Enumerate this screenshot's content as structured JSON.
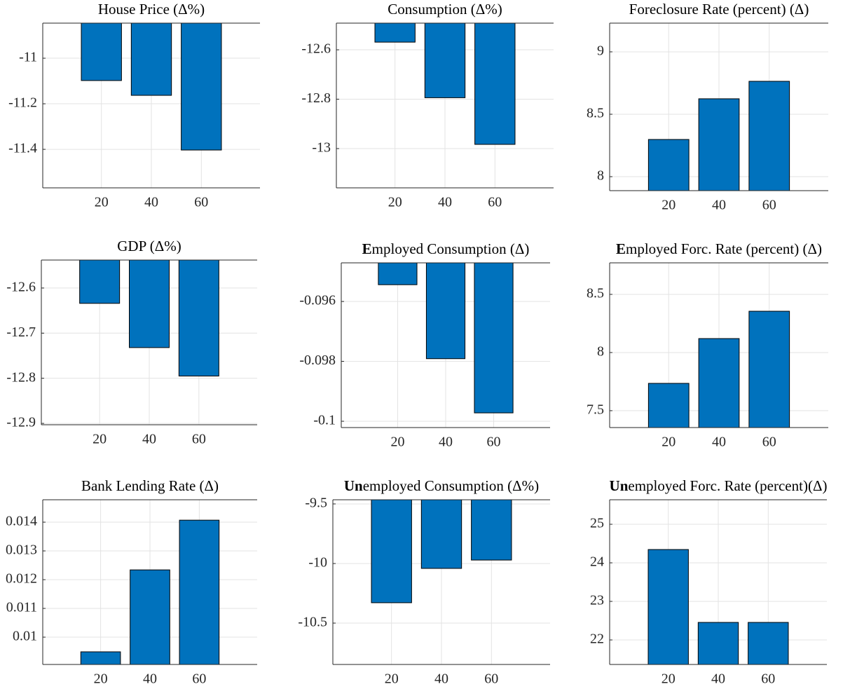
{
  "chart_data": [
    {
      "type": "bar",
      "title": "House Price (Δ%)",
      "categories": [
        "20",
        "40",
        "60"
      ],
      "values": [
        -11.098,
        -11.163,
        -11.403
      ],
      "color": "#0072BD",
      "ylim": [
        -11.569,
        -10.846
      ],
      "yticks": [
        -11.4,
        -11.2,
        -11
      ],
      "grid": true
    },
    {
      "type": "bar",
      "title": "Consumption (Δ%)",
      "categories": [
        "20",
        "40",
        "60"
      ],
      "values": [
        -12.569,
        -12.794,
        -12.983
      ],
      "color": "#0072BD",
      "ylim": [
        -13.159,
        -12.492
      ],
      "yticks": [
        -13,
        -12.8,
        -12.6
      ],
      "grid": true
    },
    {
      "type": "bar",
      "title": "Foreclosure Rate (percent) (Δ)",
      "categories": [
        "20",
        "40",
        "60"
      ],
      "values": [
        8.298,
        8.624,
        8.764
      ],
      "color": "#0072BD",
      "ylim": [
        7.888,
        9.23
      ],
      "yticks": [
        8,
        8.5,
        9
      ],
      "grid": true
    },
    {
      "type": "bar",
      "title": "GDP (Δ%)",
      "categories": [
        "20",
        "40",
        "60"
      ],
      "values": [
        -12.634,
        -12.732,
        -12.795
      ],
      "color": "#0072BD",
      "ylim": [
        -12.903,
        -12.538
      ],
      "yticks": [
        -12.9,
        -12.8,
        -12.7,
        -12.6
      ],
      "grid": true
    },
    {
      "type": "bar",
      "title": {
        "bold": "E",
        "text": "mployed Consumption (Δ)"
      },
      "categories": [
        "20",
        "40",
        "60"
      ],
      "values": [
        -0.09544,
        -0.09791,
        -0.09972
      ],
      "color": "#0072BD",
      "ylim": [
        -0.10021,
        -0.09471
      ],
      "yticks": [
        -0.1,
        -0.098,
        -0.096
      ],
      "grid": true
    },
    {
      "type": "bar",
      "title": {
        "bold": "E",
        "text": "mployed Forc. Rate (percent) (Δ)"
      },
      "categories": [
        "20",
        "40",
        "60"
      ],
      "values": [
        7.735,
        8.12,
        8.355
      ],
      "color": "#0072BD",
      "ylim": [
        7.355,
        8.771
      ],
      "yticks": [
        7.5,
        8,
        8.5
      ],
      "grid": true
    },
    {
      "type": "bar",
      "title": "Bank Lending Rate (Δ)",
      "categories": [
        "20",
        "40",
        "60"
      ],
      "values": [
        0.00949,
        0.01234,
        0.01407
      ],
      "color": "#0072BD",
      "ylim": [
        0.00905,
        0.01478
      ],
      "yticks": [
        0.01,
        0.011,
        0.012,
        0.013,
        0.014
      ],
      "grid": true
    },
    {
      "type": "bar",
      "title": {
        "bold": "Un",
        "text": "employed Consumption (Δ%)"
      },
      "categories": [
        "20",
        "40",
        "60"
      ],
      "values": [
        -10.329,
        -10.041,
        -9.971
      ],
      "color": "#0072BD",
      "ylim": [
        -10.847,
        -9.465
      ],
      "yticks": [
        -10.5,
        -10,
        -9.5
      ],
      "grid": true
    },
    {
      "type": "bar",
      "title": {
        "bold": "Un",
        "text": "employed Forc. Rate (percent)(Δ)"
      },
      "categories": [
        "20",
        "40",
        "60"
      ],
      "values": [
        24.345,
        22.455,
        22.455
      ],
      "color": "#0072BD",
      "ylim": [
        21.364,
        25.636
      ],
      "yticks": [
        22,
        23,
        24,
        25
      ],
      "grid": true
    }
  ]
}
